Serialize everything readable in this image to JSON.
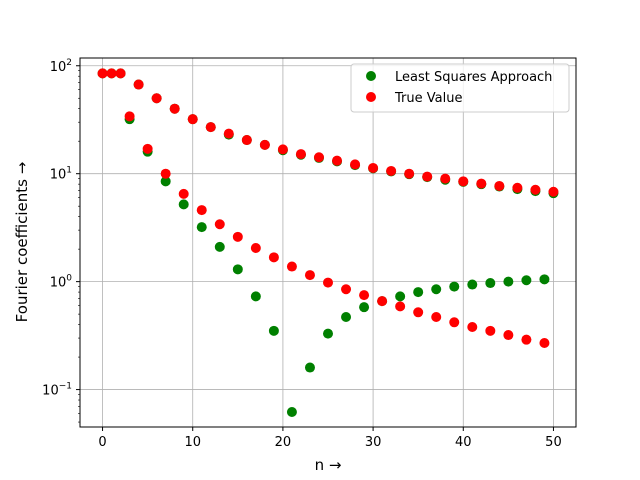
{
  "chart_data": {
    "type": "scatter",
    "title": "",
    "xlabel": "n →",
    "ylabel": "Fourier coefficients →",
    "xlim": [
      -2.5,
      52.5
    ],
    "ylim": [
      0.045,
      118
    ],
    "yscale": "log",
    "grid": true,
    "legend_position": "top-right",
    "x_ticks": [
      0,
      10,
      20,
      30,
      40,
      50
    ],
    "x_tick_labels": [
      "0",
      "10",
      "20",
      "30",
      "40",
      "50"
    ],
    "y_ticks": [
      0.1,
      1,
      10,
      100
    ],
    "y_tick_labels": [
      {
        "base": "10",
        "exp": "−1"
      },
      {
        "base": "10",
        "exp": "0"
      },
      {
        "base": "10",
        "exp": "1"
      },
      {
        "base": "10",
        "exp": "2"
      }
    ],
    "series": [
      {
        "name": "Least Squares Approach",
        "color": "#008000",
        "x": [
          0,
          1,
          2,
          3,
          4,
          5,
          6,
          7,
          8,
          9,
          10,
          11,
          12,
          13,
          14,
          15,
          16,
          17,
          18,
          19,
          20,
          21,
          22,
          23,
          24,
          25,
          26,
          27,
          28,
          29,
          30,
          31,
          32,
          33,
          34,
          35,
          36,
          37,
          38,
          39,
          40,
          41,
          42,
          43,
          44,
          45,
          46,
          47,
          48,
          49,
          50
        ],
        "y": [
          85,
          85,
          85,
          32,
          67,
          16,
          50,
          8.5,
          40,
          5.2,
          32,
          3.2,
          27,
          2.1,
          23,
          1.3,
          20.5,
          0.73,
          18.5,
          0.35,
          16.5,
          0.062,
          15,
          0.16,
          14,
          0.33,
          13,
          0.47,
          12,
          0.58,
          11.2,
          0.66,
          10.5,
          0.73,
          9.9,
          0.8,
          9.3,
          0.85,
          8.8,
          0.9,
          8.4,
          0.94,
          8,
          0.97,
          7.6,
          1.0,
          7.2,
          1.03,
          6.9,
          1.05,
          6.6
        ]
      },
      {
        "name": "True Value",
        "color": "#ff0000",
        "x": [
          0,
          1,
          2,
          3,
          4,
          5,
          6,
          7,
          8,
          9,
          10,
          11,
          12,
          13,
          14,
          15,
          16,
          17,
          18,
          19,
          20,
          21,
          22,
          23,
          24,
          25,
          26,
          27,
          28,
          29,
          30,
          31,
          32,
          33,
          34,
          35,
          36,
          37,
          38,
          39,
          40,
          41,
          42,
          43,
          44,
          45,
          46,
          47,
          48,
          49,
          50
        ],
        "y": [
          85,
          85,
          85,
          34,
          67,
          17,
          50,
          10,
          40,
          6.5,
          32,
          4.6,
          27,
          3.4,
          23.5,
          2.6,
          20.5,
          2.05,
          18.5,
          1.68,
          16.8,
          1.38,
          15.2,
          1.15,
          14.2,
          0.98,
          13.2,
          0.85,
          12.2,
          0.75,
          11.3,
          0.66,
          10.6,
          0.59,
          10,
          0.52,
          9.4,
          0.47,
          9,
          0.42,
          8.5,
          0.38,
          8.1,
          0.35,
          7.7,
          0.32,
          7.4,
          0.29,
          7.1,
          0.27,
          6.8
        ]
      }
    ]
  }
}
